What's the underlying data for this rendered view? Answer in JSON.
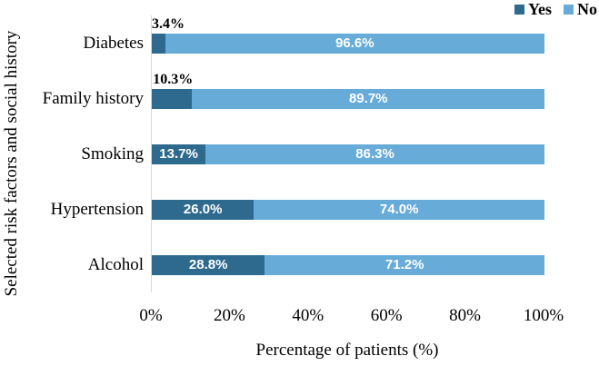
{
  "chart_data": {
    "type": "bar",
    "orientation": "horizontal-stacked-100",
    "title": "",
    "xlabel": "Percentage of patients (%)",
    "ylabel": "Selected risk factors and social history",
    "xlim": [
      0,
      100
    ],
    "x_ticks": [
      "0%",
      "20%",
      "40%",
      "60%",
      "80%",
      "100%"
    ],
    "grid": "off",
    "legend_position": "top-right",
    "series": [
      {
        "name": "Yes",
        "color": "#2E6A8E"
      },
      {
        "name": "No",
        "color": "#67ABD8"
      }
    ],
    "categories": [
      "Diabetes",
      "Family history",
      "Smoking",
      "Hypertension",
      "Alcohol"
    ],
    "rows": [
      {
        "category": "Diabetes",
        "yes": 3.4,
        "no": 96.6,
        "yes_label": "3.4%",
        "no_label": "96.6%",
        "yes_label_pos": "above"
      },
      {
        "category": "Family history",
        "yes": 10.3,
        "no": 89.7,
        "yes_label": "10.3%",
        "no_label": "89.7%",
        "yes_label_pos": "above"
      },
      {
        "category": "Smoking",
        "yes": 13.7,
        "no": 86.3,
        "yes_label": "13.7%",
        "no_label": "86.3%",
        "yes_label_pos": "inside"
      },
      {
        "category": "Hypertension",
        "yes": 26.0,
        "no": 74.0,
        "yes_label": "26.0%",
        "no_label": "74.0%",
        "yes_label_pos": "inside"
      },
      {
        "category": "Alcohol",
        "yes": 28.8,
        "no": 71.2,
        "yes_label": "28.8%",
        "no_label": "71.2%",
        "yes_label_pos": "inside"
      }
    ]
  },
  "colors": {
    "yes": "#2E6A8E",
    "no": "#67ABD8",
    "axis_line": "#D9D9D9",
    "text": "#000000",
    "inside_label": "#FFFFFF"
  }
}
